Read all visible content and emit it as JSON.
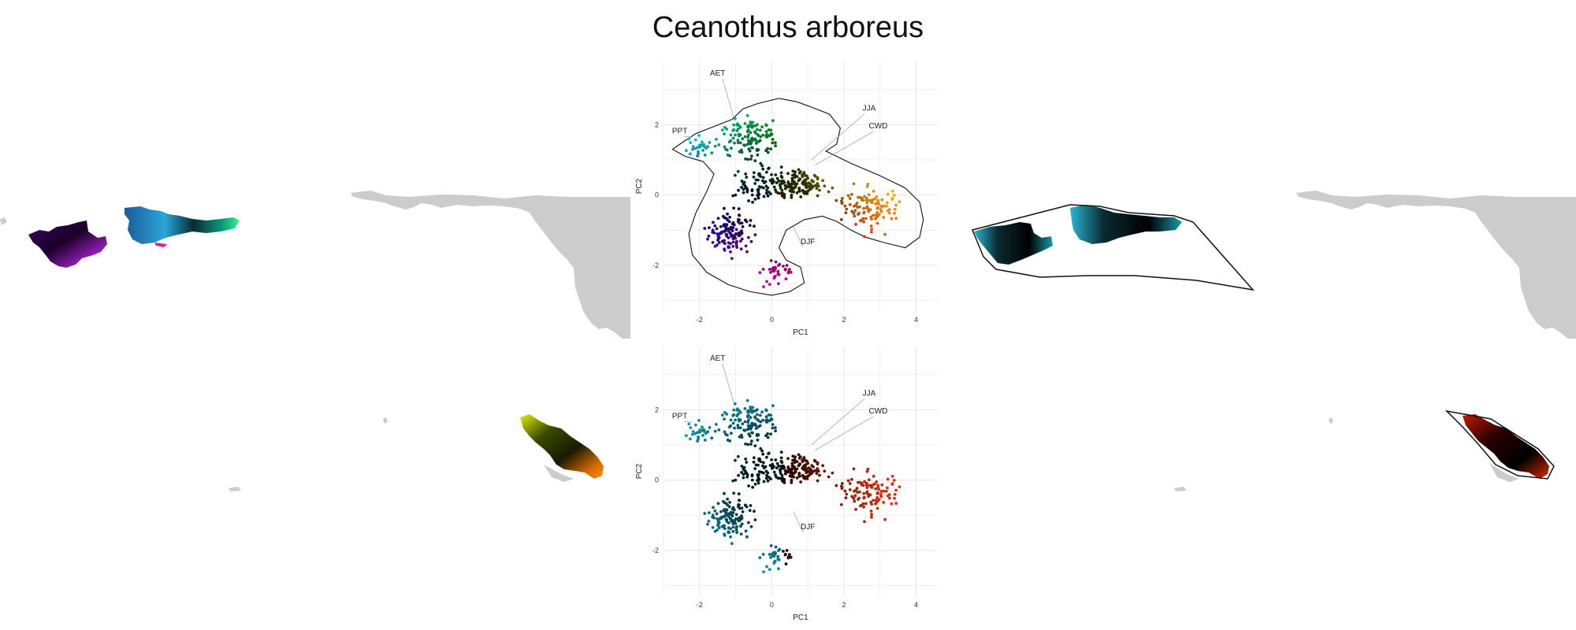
{
  "title": "Ceanothus arboreus",
  "colors": {
    "land": "#cccccc",
    "grid": "#e6e6e6",
    "hull": "#111111",
    "vector": "#9a9a9a"
  },
  "chart_data": [
    {
      "type": "scatter",
      "panel": "top",
      "title": "",
      "xlabel": "PC1",
      "ylabel": "PC2",
      "xlim": [
        -3,
        4.6
      ],
      "ylim": [
        -3.3,
        3.8
      ],
      "xticks": [
        -2,
        0,
        2,
        4
      ],
      "yticks": [
        -2,
        0,
        2
      ],
      "grid": true,
      "hull": true,
      "color_scheme": "bivariate-hue",
      "vectors": [
        {
          "label": "AET",
          "x": -1.5,
          "y": 3.4,
          "x0": -1.05,
          "y0": 2.2
        },
        {
          "label": "PPT",
          "x": -2.55,
          "y": 1.75,
          "x0": -2.2,
          "y0": 1.65
        },
        {
          "label": "JJA",
          "x": 2.7,
          "y": 2.4,
          "x0": 1.1,
          "y0": 1.0
        },
        {
          "label": "CWD",
          "x": 2.95,
          "y": 1.9,
          "x0": 1.2,
          "y0": 0.85
        },
        {
          "label": "DJF",
          "x": 1.0,
          "y": -1.4,
          "x0": 0.6,
          "y0": -0.9
        }
      ],
      "n_points": 620
    },
    {
      "type": "scatter",
      "panel": "bottom",
      "title": "",
      "xlabel": "PC1",
      "ylabel": "PC2",
      "xlim": [
        -3,
        4.6
      ],
      "ylim": [
        -3.3,
        3.8
      ],
      "xticks": [
        -2,
        0,
        2,
        4
      ],
      "yticks": [
        -2,
        0,
        2
      ],
      "grid": true,
      "hull": false,
      "color_scheme": "cyan-red",
      "vectors": [
        {
          "label": "AET",
          "x": -1.5,
          "y": 3.4,
          "x0": -1.05,
          "y0": 2.2
        },
        {
          "label": "PPT",
          "x": -2.55,
          "y": 1.75,
          "x0": -2.2,
          "y0": 1.65
        },
        {
          "label": "JJA",
          "x": 2.7,
          "y": 2.4,
          "x0": 1.1,
          "y0": 1.0
        },
        {
          "label": "CWD",
          "x": 2.95,
          "y": 1.9,
          "x0": 1.2,
          "y0": 0.85
        },
        {
          "label": "DJF",
          "x": 1.0,
          "y": -1.4,
          "x0": 0.6,
          "y0": -0.9
        }
      ],
      "n_points": 620
    }
  ]
}
